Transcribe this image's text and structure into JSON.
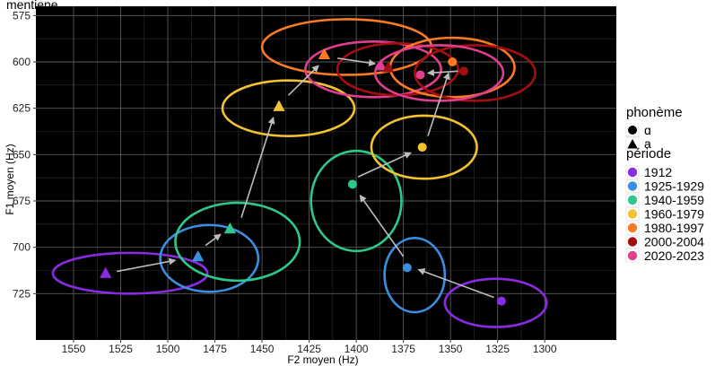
{
  "header_fragment": "mentiene.",
  "chart_data": {
    "type": "scatter",
    "title": "",
    "xlabel": "F2 moyen (Hz)",
    "ylabel": "F1 moyen (Hz)",
    "x_reversed": true,
    "y_reversed": true,
    "xlim": [
      1570,
      1262
    ],
    "ylim": [
      570,
      750
    ],
    "x_ticks": [
      1550,
      1525,
      1500,
      1475,
      1450,
      1425,
      1400,
      1375,
      1350,
      1325,
      1300
    ],
    "y_ticks": [
      575,
      600,
      625,
      650,
      675,
      700,
      725
    ],
    "grid": true,
    "background": "#000000",
    "legend_placement": "right",
    "legend_shape": {
      "title": "phonème",
      "entries": [
        {
          "label": "ɑ",
          "shape": "circle"
        },
        {
          "label": "a",
          "shape": "triangle"
        }
      ]
    },
    "legend_color": {
      "title": "période",
      "entries": [
        {
          "label": "1912",
          "color": "#8a2be2"
        },
        {
          "label": "1925-1929",
          "color": "#3a8fe0"
        },
        {
          "label": "1940-1959",
          "color": "#2ec98a"
        },
        {
          "label": "1960-1979",
          "color": "#f2c230"
        },
        {
          "label": "1980-1997",
          "color": "#fb7a24"
        },
        {
          "label": "2000-2004",
          "color": "#a30f0f"
        },
        {
          "label": "2020-2023",
          "color": "#e23e8f"
        }
      ]
    },
    "points": [
      {
        "period": "1912",
        "phoneme": "a",
        "x": 1533,
        "y": 714
      },
      {
        "period": "1925-1929",
        "phoneme": "a",
        "x": 1484,
        "y": 705
      },
      {
        "period": "1940-1959",
        "phoneme": "a",
        "x": 1467,
        "y": 690
      },
      {
        "period": "1960-1979",
        "phoneme": "a",
        "x": 1441,
        "y": 624
      },
      {
        "period": "1980-1997",
        "phoneme": "a",
        "x": 1417,
        "y": 596
      },
      {
        "period": "2020-2023",
        "phoneme": "a",
        "x": 1387,
        "y": 602
      },
      {
        "period": "2000-2004",
        "phoneme": "a",
        "x": 1383,
        "y": 603
      },
      {
        "period": "1912",
        "phoneme": "ɑ",
        "x": 1323,
        "y": 729
      },
      {
        "period": "1925-1929",
        "phoneme": "ɑ",
        "x": 1373,
        "y": 711
      },
      {
        "period": "1940-1959",
        "phoneme": "ɑ",
        "x": 1402,
        "y": 666
      },
      {
        "period": "1960-1979",
        "phoneme": "ɑ",
        "x": 1365,
        "y": 646
      },
      {
        "period": "1980-1997",
        "phoneme": "ɑ",
        "x": 1349,
        "y": 600
      },
      {
        "period": "2020-2023",
        "phoneme": "ɑ",
        "x": 1366,
        "y": 607
      },
      {
        "period": "2000-2004",
        "phoneme": "ɑ",
        "x": 1343,
        "y": 605
      }
    ],
    "ellipses": [
      {
        "period": "1912",
        "phoneme": "a",
        "cx": 1520,
        "cy": 714,
        "rx": 41,
        "ry": 11
      },
      {
        "period": "1925-1929",
        "phoneme": "a",
        "cx": 1478,
        "cy": 706,
        "rx": 26,
        "ry": 18
      },
      {
        "period": "1940-1959",
        "phoneme": "a",
        "cx": 1463,
        "cy": 697,
        "rx": 33,
        "ry": 21
      },
      {
        "period": "1960-1979",
        "phoneme": "a",
        "cx": 1436,
        "cy": 625,
        "rx": 35,
        "ry": 15
      },
      {
        "period": "1980-1997",
        "phoneme": "a",
        "cx": 1405,
        "cy": 592,
        "rx": 45,
        "ry": 15
      },
      {
        "period": "2020-2023",
        "phoneme": "a",
        "cx": 1391,
        "cy": 604,
        "rx": 36,
        "ry": 15
      },
      {
        "period": "2000-2004",
        "phoneme": "a",
        "cx": 1378,
        "cy": 604,
        "rx": 32,
        "ry": 14
      },
      {
        "period": "1912",
        "phoneme": "ɑ",
        "cx": 1326,
        "cy": 730,
        "rx": 27,
        "ry": 13
      },
      {
        "period": "1925-1929",
        "phoneme": "ɑ",
        "cx": 1369,
        "cy": 715,
        "rx": 16,
        "ry": 20
      },
      {
        "period": "1940-1959",
        "phoneme": "ɑ",
        "cx": 1400,
        "cy": 675,
        "rx": 24,
        "ry": 27
      },
      {
        "period": "1960-1979",
        "phoneme": "ɑ",
        "cx": 1364,
        "cy": 646,
        "rx": 28,
        "ry": 17
      },
      {
        "period": "1980-1997",
        "phoneme": "ɑ",
        "cx": 1349,
        "cy": 603,
        "rx": 33,
        "ry": 16
      },
      {
        "period": "2000-2004",
        "phoneme": "ɑ",
        "cx": 1337,
        "cy": 606,
        "rx": 32,
        "ry": 15
      },
      {
        "period": "2020-2023",
        "phoneme": "ɑ",
        "cx": 1356,
        "cy": 606,
        "rx": 34,
        "ry": 15
      }
    ],
    "trajectories": [
      {
        "phoneme": "a",
        "from": [
          1527,
          713
        ],
        "to": [
          1496,
          707
        ]
      },
      {
        "phoneme": "a",
        "from": [
          1480,
          699
        ],
        "to": [
          1472,
          693
        ]
      },
      {
        "phoneme": "a",
        "from": [
          1461,
          684
        ],
        "to": [
          1444,
          630
        ]
      },
      {
        "phoneme": "a",
        "from": [
          1436,
          618
        ],
        "to": [
          1420,
          602
        ]
      },
      {
        "phoneme": "a",
        "from": [
          1410,
          598
        ],
        "to": [
          1390,
          601
        ]
      },
      {
        "phoneme": "ɑ",
        "from": [
          1327,
          727
        ],
        "to": [
          1367,
          712
        ]
      },
      {
        "phoneme": "ɑ",
        "from": [
          1375,
          705
        ],
        "to": [
          1398,
          672
        ]
      },
      {
        "phoneme": "ɑ",
        "from": [
          1399,
          662
        ],
        "to": [
          1371,
          649
        ]
      },
      {
        "phoneme": "ɑ",
        "from": [
          1362,
          640
        ],
        "to": [
          1351,
          606
        ]
      },
      {
        "phoneme": "ɑ",
        "from": [
          1346,
          605
        ],
        "to": [
          1362,
          606
        ]
      }
    ]
  }
}
